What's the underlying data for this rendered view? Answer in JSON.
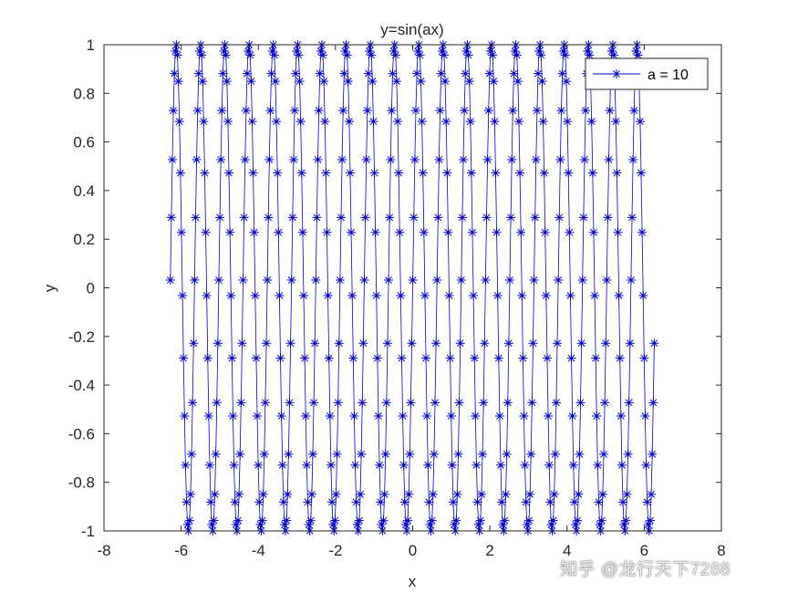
{
  "chart_data": {
    "type": "line",
    "title": "y=sin(ax)",
    "xlabel": "x",
    "ylabel": "y",
    "xlim": [
      -8,
      8
    ],
    "ylim": [
      -1,
      1
    ],
    "xticks": [
      -8,
      -6,
      -4,
      -2,
      0,
      2,
      4,
      6,
      8
    ],
    "yticks": [
      -1,
      -0.8,
      -0.6,
      -0.4,
      -0.2,
      0,
      0.2,
      0.4,
      0.6,
      0.8,
      1
    ],
    "xtick_labels": [
      "-8",
      "-6",
      "-4",
      "-2",
      "0",
      "2",
      "4",
      "6",
      "8"
    ],
    "ytick_labels": [
      "-1",
      "-0.8",
      "-0.6",
      "-0.4",
      "-0.2",
      "0",
      "0.2",
      "0.4",
      "0.6",
      "0.8",
      "1"
    ],
    "grid": false,
    "legend_position": "top-right",
    "series": [
      {
        "name": "a = 10",
        "function": "sin(10x)",
        "a": 10,
        "x_start": -6.28,
        "x_end": 6.28,
        "marker": "asterisk",
        "color": "#0000cc",
        "markers_per_period": 24
      }
    ]
  },
  "watermark": "知乎 @龙行天下7288",
  "colors": {
    "line": "#0000cc",
    "axes": "#262626",
    "background": "#ffffff"
  }
}
